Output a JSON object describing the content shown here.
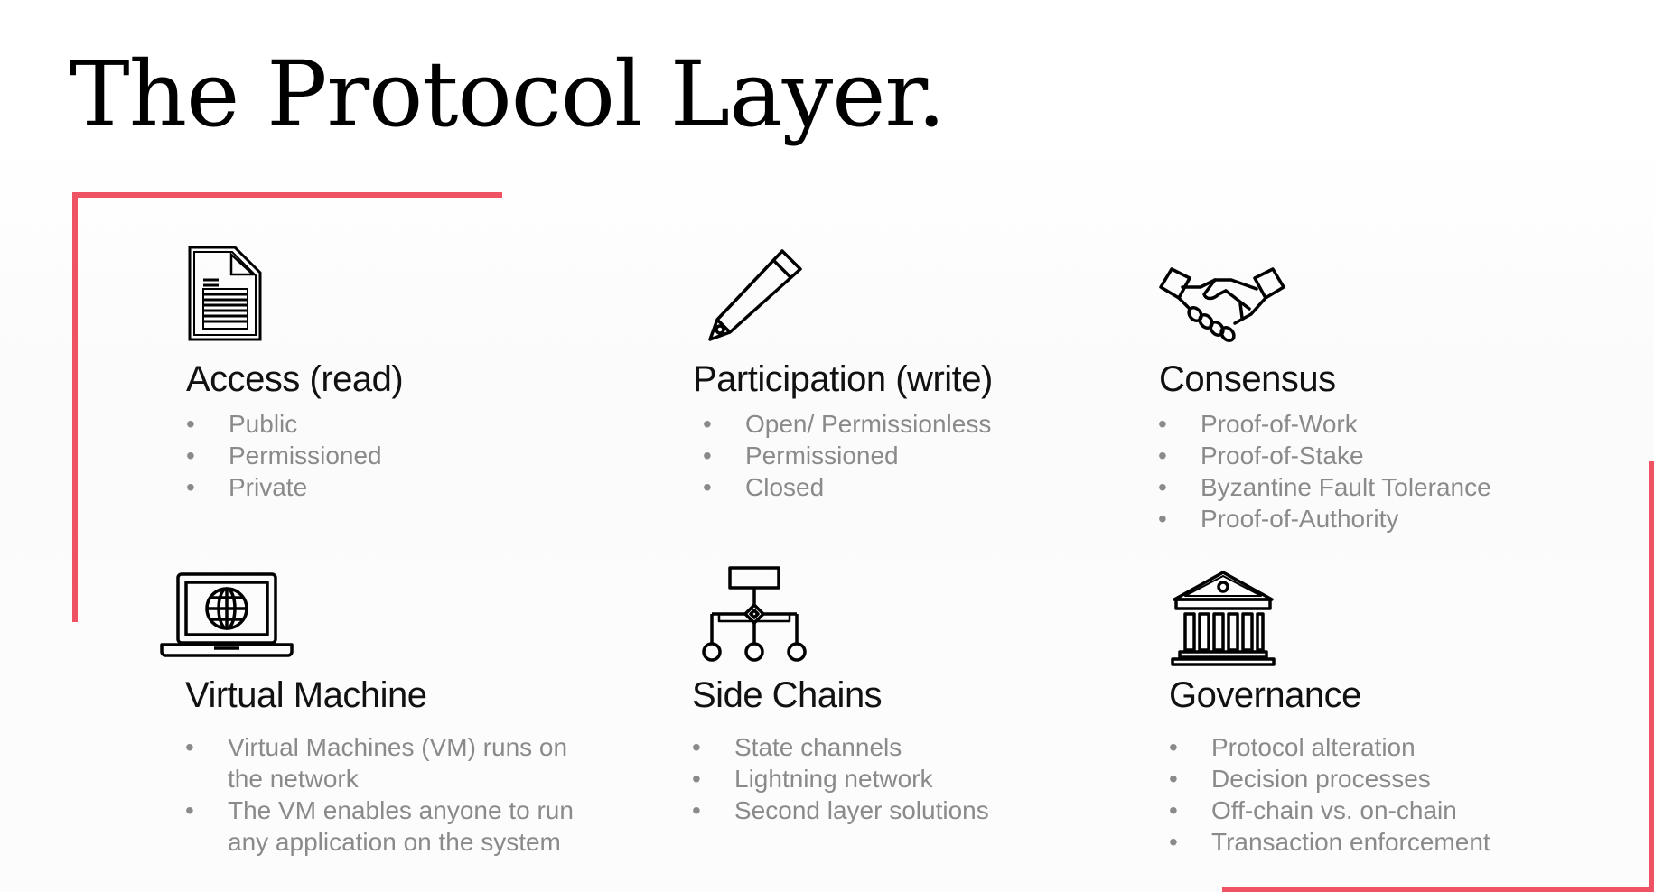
{
  "slide": {
    "title": "The Protocol Layer.",
    "accent_color": "#ef5263"
  },
  "sections": [
    {
      "title": "Access (read)",
      "icon": "document-icon",
      "items": [
        "Public",
        "Permissioned",
        "Private"
      ]
    },
    {
      "title": "Participation (write)",
      "icon": "pencil-icon",
      "items": [
        "Open/ Permissionless",
        "Permissioned",
        "Closed"
      ]
    },
    {
      "title": "Consensus",
      "icon": "handshake-icon",
      "items": [
        "Proof-of-Work",
        "Proof-of-Stake",
        "Byzantine Fault Tolerance",
        "Proof-of-Authority"
      ]
    },
    {
      "title": "Virtual Machine",
      "icon": "laptop-globe-icon",
      "items": [
        "Virtual Machines (VM) runs on the network",
        "The VM enables anyone to run any application on the system"
      ]
    },
    {
      "title": "Side Chains",
      "icon": "network-hierarchy-icon",
      "items": [
        "State channels",
        "Lightning network",
        "Second layer solutions"
      ]
    },
    {
      "title": "Governance",
      "icon": "bank-building-icon",
      "items": [
        "Protocol alteration",
        "Decision processes",
        "Off-chain vs. on-chain",
        "Transaction enforcement"
      ]
    }
  ]
}
